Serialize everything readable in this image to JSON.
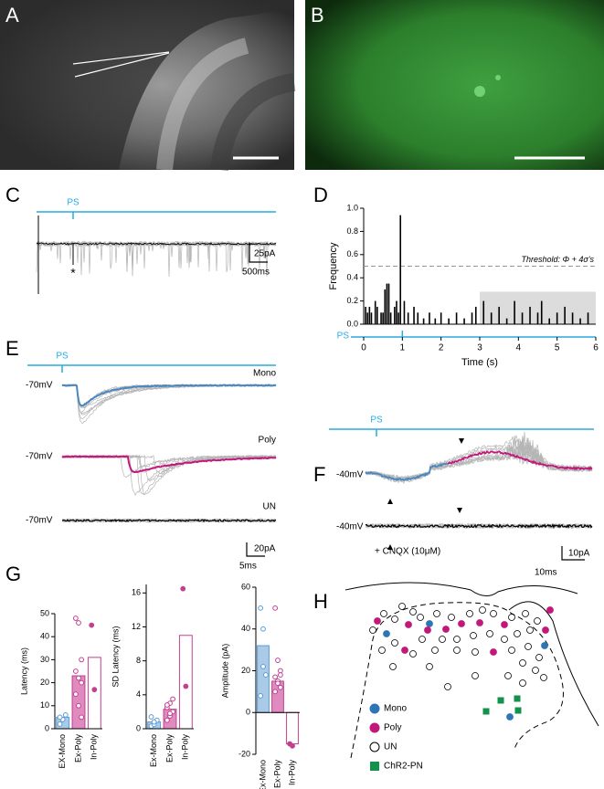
{
  "panel_labels": [
    "A",
    "B",
    "C",
    "D",
    "E",
    "F",
    "G",
    "H"
  ],
  "panel_c": {
    "stim_label": "PS",
    "scale_y": "25pA",
    "scale_x": "500ms",
    "marker": "*"
  },
  "panel_e": {
    "stim_label": "PS",
    "rows": [
      {
        "label": "Mono",
        "holding": "-70mV"
      },
      {
        "label": "Poly",
        "holding": "-70mV"
      },
      {
        "label": "UN",
        "holding": "-70mV"
      }
    ],
    "scale_y": "20pA",
    "scale_x": "5ms"
  },
  "panel_f": {
    "stim_label": "PS",
    "holding": [
      "-40mV",
      "-40mV"
    ],
    "drug": "+ CNQX (10μM)",
    "scale_y": "10pA",
    "scale_x": "10ms"
  },
  "panel_h": {
    "legend": [
      {
        "name": "Mono",
        "color": "#2e75b6",
        "shape": "circle"
      },
      {
        "name": "Poly",
        "color": "#c2187a",
        "shape": "circle"
      },
      {
        "name": "UN",
        "color": "#ffffff",
        "shape": "circle"
      },
      {
        "name": "ChR2-PN",
        "color": "#12924a",
        "shape": "square"
      }
    ]
  },
  "chart_data": [
    {
      "type": "bar",
      "y_label": "Frequency",
      "x_label": "Time (s)",
      "color": "#000000",
      "x": [
        0.05,
        0.1,
        0.15,
        0.2,
        0.3,
        0.35,
        0.45,
        0.5,
        0.55,
        0.6,
        0.65,
        0.7,
        0.8,
        0.85,
        0.9,
        0.95,
        1.05,
        1.15,
        1.3,
        1.4,
        1.55,
        1.7,
        1.85,
        2.0,
        2.2,
        2.4,
        2.6,
        2.8,
        2.9,
        3.1,
        3.3,
        3.5,
        3.7,
        3.9,
        4.1,
        4.3,
        4.5,
        4.6,
        4.8,
        5.0,
        5.2,
        5.4,
        5.6,
        5.8
      ],
      "values": [
        0.15,
        0.1,
        0.15,
        0.1,
        0.2,
        0.15,
        0.1,
        0.1,
        0.3,
        0.35,
        0.35,
        0.1,
        0.15,
        0.2,
        0.1,
        0.94,
        0.2,
        0.1,
        0.15,
        0.1,
        0.05,
        0.1,
        0.05,
        0.1,
        0.05,
        0.1,
        0.05,
        0.1,
        0.15,
        0.2,
        0.1,
        0.15,
        0.05,
        0.2,
        0.1,
        0.15,
        0.1,
        0.2,
        0.05,
        0.1,
        0.15,
        0.1,
        0.05,
        0.1
      ],
      "xlim": [
        0,
        6
      ],
      "xticks": [
        0,
        1,
        2,
        3,
        4,
        5,
        6
      ],
      "ylim": [
        0,
        1
      ],
      "yticks": [
        {
          "value": 0,
          "label": "0.0"
        },
        0.2,
        0.4,
        0.6,
        0.8,
        {
          "value": 1,
          "label": "1.0"
        }
      ],
      "threshold": 0.5,
      "threshold_label": "Threshold: Φ + 4σ's",
      "threshold_color": "#999999",
      "highlight_x": [
        3,
        6
      ],
      "highlight_top": 0.28,
      "highlight_color": "#dcdcdc",
      "stim_x": 1,
      "stim_label": "PS",
      "stim_color": "#29abe2"
    },
    {
      "type": "bar",
      "y_label": "Latency (ms)",
      "categories": [
        "EX-Mono",
        "Ex-Poly",
        "In-Poly"
      ],
      "values": [
        5,
        23,
        31
      ],
      "colors": [
        "#a9cbe8",
        "#e08ac0",
        "#ffffff"
      ],
      "edge_colors": [
        "#5b9bd5",
        "#c2408f",
        "#c2408f"
      ],
      "points": [
        [
          2,
          4,
          6,
          5
        ],
        [
          48,
          46,
          30,
          25,
          22,
          20,
          15,
          10,
          5
        ],
        [
          45,
          17
        ]
      ],
      "ylim": [
        0,
        50
      ],
      "yticks": [
        0,
        10,
        20,
        30,
        40,
        50
      ]
    },
    {
      "type": "bar",
      "y_label": "SD Latency (ms)",
      "categories": [
        "Ex-Mono",
        "Ex-Poly",
        "In-Poly"
      ],
      "values": [
        0.8,
        2.3,
        11
      ],
      "colors": [
        "#a9cbe8",
        "#e08ac0",
        "#ffffff"
      ],
      "edge_colors": [
        "#5b9bd5",
        "#c2408f",
        "#c2408f"
      ],
      "points": [
        [
          0.3,
          0.5,
          1,
          1.4,
          0.8
        ],
        [
          1,
          1.5,
          2,
          2.5,
          3,
          3.5,
          2.8,
          1.8
        ],
        [
          16.5,
          5
        ]
      ],
      "ylim": [
        0,
        17
      ],
      "yticks": [
        0,
        4,
        8,
        12,
        16
      ]
    },
    {
      "type": "bar",
      "y_label": "Amplitude (pA)",
      "categories": [
        "Ex-Mono",
        "Ex-Poly",
        "In-Poly"
      ],
      "values": [
        32,
        15,
        -15
      ],
      "colors": [
        "#a9cbe8",
        "#e08ac0",
        "#ffffff"
      ],
      "edge_colors": [
        "#5b9bd5",
        "#c2408f",
        "#c2408f"
      ],
      "points": [
        [
          50,
          40,
          18,
          8,
          22
        ],
        [
          50,
          25,
          20,
          17,
          15,
          12,
          10,
          14,
          18
        ],
        [
          -15,
          -16
        ]
      ],
      "ylim": [
        -20,
        60
      ],
      "yticks": [
        -20,
        0,
        20,
        40,
        60
      ]
    }
  ]
}
